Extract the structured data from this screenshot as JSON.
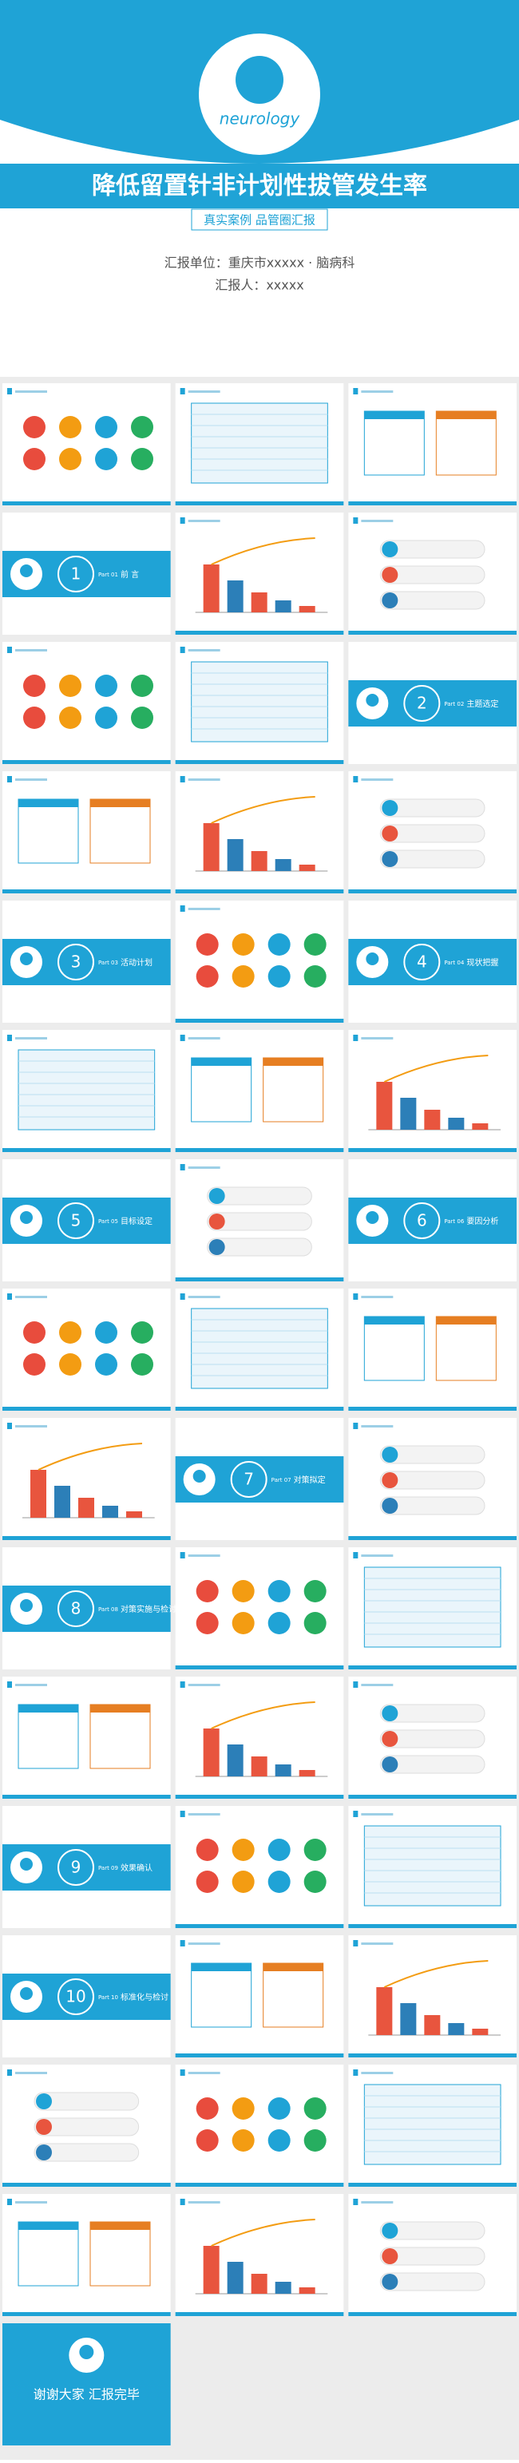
{
  "cover": {
    "logo": "neurology",
    "title": "降低留置针非计划性拔管发生率",
    "subtitle": "真实案例 品管圈汇报",
    "unit": "汇报单位：重庆市xxxxx · 脑病科",
    "reporter": "汇报人：xxxxx"
  },
  "sections": [
    {
      "number": 1,
      "part": "Part 01",
      "title": "前 言"
    },
    {
      "number": 2,
      "part": "Part 02",
      "title": "主题选定"
    },
    {
      "number": 3,
      "part": "Part 03",
      "title": "活动计划"
    },
    {
      "number": 4,
      "part": "Part 04",
      "title": "现状把握"
    },
    {
      "number": 5,
      "part": "Part 05",
      "title": "目标设定"
    },
    {
      "number": 6,
      "part": "Part 06",
      "title": "要因分析"
    },
    {
      "number": 7,
      "part": "Part 07",
      "title": "对策拟定"
    },
    {
      "number": 8,
      "part": "Part 08",
      "title": "对策实施与检讨"
    },
    {
      "number": 9,
      "part": "Part 09",
      "title": "效果确认"
    },
    {
      "number": 10,
      "part": "Part 10",
      "title": "标准化与检讨"
    }
  ],
  "ending": {
    "title": "谢谢大家 汇报完毕"
  }
}
